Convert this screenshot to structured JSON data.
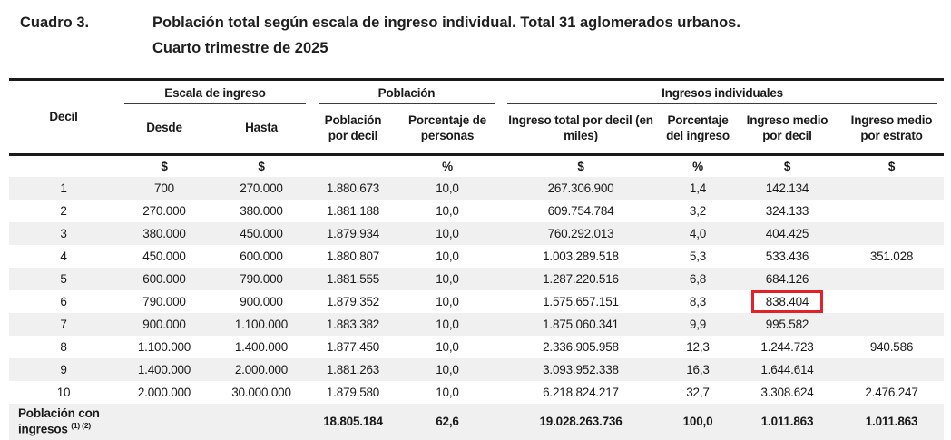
{
  "title": {
    "label": "Cuadro 3.",
    "line1": "Población total según escala de ingreso individual. Total 31 aglomerados urbanos.",
    "line2": "Cuarto trimestre de 2025"
  },
  "table": {
    "group_labels": [
      "Escala de ingreso",
      "Población",
      "Ingresos individuales"
    ],
    "columns": [
      "Decil",
      "Desde",
      "Hasta",
      "Población por decil",
      "Porcentaje de personas",
      "Ingreso total por decil (en miles)",
      "Porcentaje del ingreso",
      "Ingreso medio por decil",
      "Ingreso medio por estrato"
    ],
    "units": [
      "",
      "$",
      "$",
      "",
      "%",
      "$",
      "%",
      "$",
      "$"
    ],
    "rows": [
      [
        "1",
        "700",
        "270.000",
        "1.880.673",
        "10,0",
        "267.306.900",
        "1,4",
        "142.134",
        ""
      ],
      [
        "2",
        "270.000",
        "380.000",
        "1.881.188",
        "10,0",
        "609.754.784",
        "3,2",
        "324.133",
        ""
      ],
      [
        "3",
        "380.000",
        "450.000",
        "1.879.934",
        "10,0",
        "760.292.013",
        "4,0",
        "404.425",
        ""
      ],
      [
        "4",
        "450.000",
        "600.000",
        "1.880.807",
        "10,0",
        "1.003.289.518",
        "5,3",
        "533.436",
        "351.028"
      ],
      [
        "5",
        "600.000",
        "790.000",
        "1.881.555",
        "10,0",
        "1.287.220.516",
        "6,8",
        "684.126",
        ""
      ],
      [
        "6",
        "790.000",
        "900.000",
        "1.879.352",
        "10,0",
        "1.575.657.151",
        "8,3",
        "838.404",
        ""
      ],
      [
        "7",
        "900.000",
        "1.100.000",
        "1.883.382",
        "10,0",
        "1.875.060.341",
        "9,9",
        "995.582",
        ""
      ],
      [
        "8",
        "1.100.000",
        "1.400.000",
        "1.877.450",
        "10,0",
        "2.336.905.958",
        "12,3",
        "1.244.723",
        "940.586"
      ],
      [
        "9",
        "1.400.000",
        "2.000.000",
        "1.881.263",
        "10,0",
        "3.093.952.338",
        "16,3",
        "1.644.614",
        ""
      ],
      [
        "10",
        "2.000.000",
        "30.000.000",
        "1.879.580",
        "10,0",
        "6.218.824.217",
        "32,7",
        "3.308.624",
        "2.476.247"
      ]
    ],
    "footer": {
      "label_line1": "Población con",
      "label_line2": "ingresos",
      "footnote_refs": "(1) (2)",
      "values": [
        "18.805.184",
        "62,6",
        "19.028.263.736",
        "100,0",
        "1.011.863",
        "1.011.863"
      ]
    },
    "highlight": {
      "row_index": 5,
      "col_index": 7,
      "value": "838.404",
      "color": "#e22128"
    }
  },
  "colors": {
    "stripe_gray": "#f0f0f0",
    "border_black": "#1a1a1a",
    "highlight_red": "#e22128",
    "text": "#1a1a1a"
  }
}
